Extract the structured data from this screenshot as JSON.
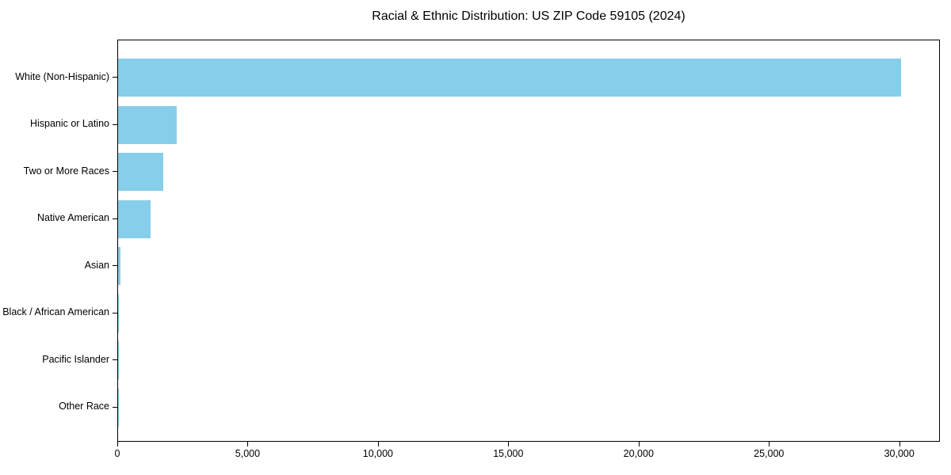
{
  "chart_data": {
    "type": "bar",
    "orientation": "horizontal",
    "title": "Racial & Ethnic Distribution: US ZIP Code 59105 (2024)",
    "categories": [
      "White (Non-Hispanic)",
      "Hispanic or Latino",
      "Two or More Races",
      "Native American",
      "Asian",
      "Black / African American",
      "Pacific Islander",
      "Other Race"
    ],
    "values": [
      30050,
      2250,
      1730,
      1250,
      80,
      30,
      20,
      10
    ],
    "x_ticks": [
      0,
      5000,
      10000,
      15000,
      20000,
      25000,
      30000
    ],
    "x_tick_labels": [
      "0",
      "5,000",
      "10,000",
      "15,000",
      "20,000",
      "25,000",
      "30,000"
    ],
    "xlim": [
      0,
      31560
    ],
    "xlabel": "",
    "ylabel": "",
    "grid": false,
    "legend": null,
    "bar_color": "#87CEEB",
    "axis_color": "#000000",
    "background_color": "#ffffff"
  }
}
